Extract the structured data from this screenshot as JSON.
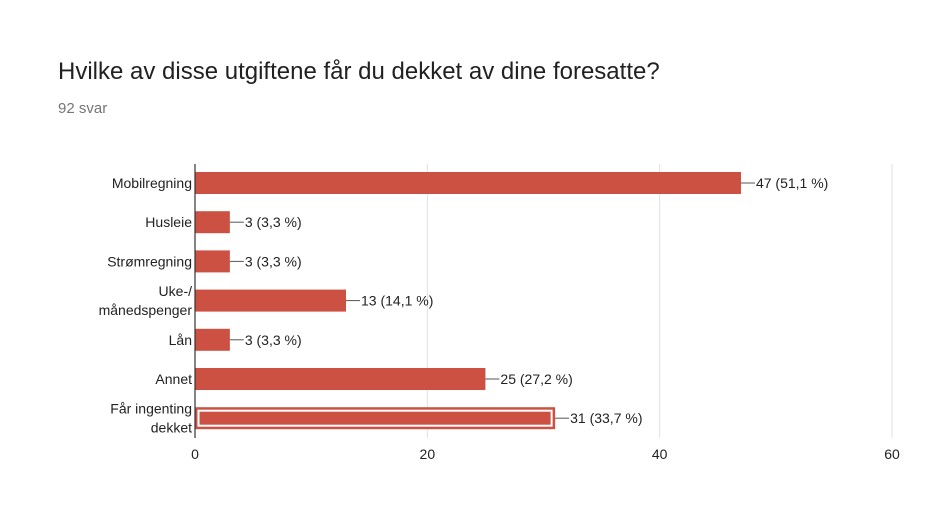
{
  "header": {
    "title": "Hvilke av disse utgiftene får du dekket av dine foresatte?",
    "responses": "92 svar"
  },
  "chart_data": {
    "type": "bar",
    "orientation": "horizontal",
    "categories": [
      [
        "Mobilregning"
      ],
      [
        "Husleie"
      ],
      [
        "Strømregning"
      ],
      [
        "Uke-/",
        "månedspenger"
      ],
      [
        "Lån"
      ],
      [
        "Annet"
      ],
      [
        "Får ingenting",
        "dekket"
      ]
    ],
    "values": [
      47,
      3,
      3,
      13,
      3,
      25,
      31
    ],
    "value_labels": [
      "47 (51,1 %)",
      "3 (3,3 %)",
      "3 (3,3 %)",
      "13 (14,1 %)",
      "3 (3,3 %)",
      "25 (27,2 %)",
      "31 (33,7 %)"
    ],
    "highlighted_index": 6,
    "xlim": [
      0,
      60
    ],
    "xticks": [
      0,
      20,
      40,
      60
    ],
    "grid": true,
    "bar_color": "#cc5143",
    "highlight_outline_color": "#ffffff"
  }
}
